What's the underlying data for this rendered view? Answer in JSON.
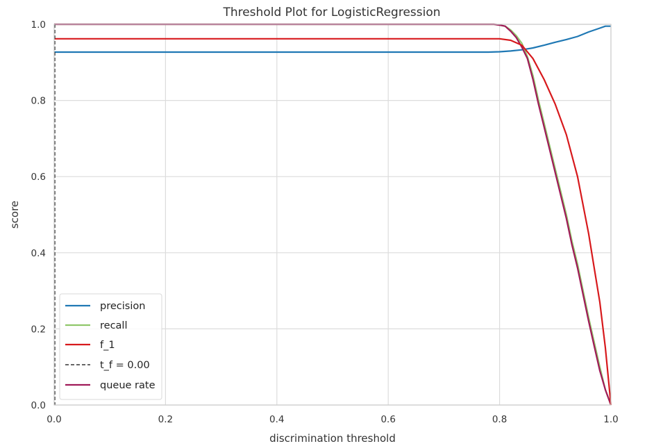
{
  "chart_data": {
    "type": "line",
    "title": "Threshold Plot for LogisticRegression",
    "xlabel": "discrimination threshold",
    "ylabel": "score",
    "xlim": [
      0.0,
      1.0
    ],
    "ylim": [
      0.0,
      1.0
    ],
    "xticks": [
      "0.0",
      "0.2",
      "0.4",
      "0.6",
      "0.8",
      "1.0"
    ],
    "yticks": [
      "0.0",
      "0.2",
      "0.4",
      "0.6",
      "0.8",
      "1.0"
    ],
    "grid": true,
    "legend_position": "lower-left",
    "threshold_line": {
      "x": 0.0,
      "name": "t_f = 0.00",
      "color": "#333333"
    },
    "series": [
      {
        "name": "precision",
        "color": "#1f78b4",
        "points": [
          [
            0.0,
            0.927
          ],
          [
            0.2,
            0.927
          ],
          [
            0.4,
            0.927
          ],
          [
            0.6,
            0.927
          ],
          [
            0.78,
            0.927
          ],
          [
            0.8,
            0.928
          ],
          [
            0.82,
            0.93
          ],
          [
            0.84,
            0.933
          ],
          [
            0.86,
            0.938
          ],
          [
            0.88,
            0.945
          ],
          [
            0.9,
            0.953
          ],
          [
            0.92,
            0.96
          ],
          [
            0.94,
            0.968
          ],
          [
            0.96,
            0.98
          ],
          [
            0.98,
            0.99
          ],
          [
            0.99,
            0.995
          ],
          [
            1.0,
            0.995
          ]
        ]
      },
      {
        "name": "recall",
        "color": "#8fc76a",
        "points": [
          [
            0.0,
            1.0
          ],
          [
            0.2,
            1.0
          ],
          [
            0.4,
            1.0
          ],
          [
            0.6,
            1.0
          ],
          [
            0.79,
            1.0
          ],
          [
            0.8,
            0.998
          ],
          [
            0.81,
            0.995
          ],
          [
            0.82,
            0.985
          ],
          [
            0.83,
            0.97
          ],
          [
            0.84,
            0.95
          ],
          [
            0.85,
            0.915
          ],
          [
            0.86,
            0.865
          ],
          [
            0.87,
            0.8
          ],
          [
            0.88,
            0.74
          ],
          [
            0.89,
            0.68
          ],
          [
            0.9,
            0.62
          ],
          [
            0.91,
            0.56
          ],
          [
            0.92,
            0.5
          ],
          [
            0.93,
            0.43
          ],
          [
            0.94,
            0.37
          ],
          [
            0.95,
            0.3
          ],
          [
            0.96,
            0.23
          ],
          [
            0.97,
            0.165
          ],
          [
            0.98,
            0.1
          ],
          [
            0.99,
            0.04
          ],
          [
            1.0,
            0.0
          ]
        ]
      },
      {
        "name": "f_1",
        "color": "#d7191c",
        "points": [
          [
            0.0,
            0.962
          ],
          [
            0.2,
            0.962
          ],
          [
            0.4,
            0.962
          ],
          [
            0.6,
            0.962
          ],
          [
            0.8,
            0.962
          ],
          [
            0.82,
            0.958
          ],
          [
            0.84,
            0.945
          ],
          [
            0.86,
            0.91
          ],
          [
            0.88,
            0.855
          ],
          [
            0.9,
            0.79
          ],
          [
            0.92,
            0.71
          ],
          [
            0.94,
            0.6
          ],
          [
            0.96,
            0.45
          ],
          [
            0.97,
            0.36
          ],
          [
            0.98,
            0.27
          ],
          [
            0.99,
            0.15
          ],
          [
            1.0,
            0.0
          ]
        ]
      },
      {
        "name": "queue rate",
        "color": "#a01a58",
        "points": [
          [
            0.0,
            1.0
          ],
          [
            0.2,
            1.0
          ],
          [
            0.4,
            1.0
          ],
          [
            0.6,
            1.0
          ],
          [
            0.79,
            1.0
          ],
          [
            0.8,
            0.998
          ],
          [
            0.81,
            0.995
          ],
          [
            0.82,
            0.982
          ],
          [
            0.83,
            0.965
          ],
          [
            0.84,
            0.94
          ],
          [
            0.85,
            0.91
          ],
          [
            0.86,
            0.855
          ],
          [
            0.87,
            0.79
          ],
          [
            0.88,
            0.73
          ],
          [
            0.89,
            0.67
          ],
          [
            0.9,
            0.61
          ],
          [
            0.91,
            0.55
          ],
          [
            0.92,
            0.49
          ],
          [
            0.93,
            0.42
          ],
          [
            0.94,
            0.36
          ],
          [
            0.95,
            0.29
          ],
          [
            0.96,
            0.22
          ],
          [
            0.97,
            0.155
          ],
          [
            0.98,
            0.09
          ],
          [
            0.99,
            0.04
          ],
          [
            1.0,
            0.0
          ]
        ]
      }
    ]
  }
}
